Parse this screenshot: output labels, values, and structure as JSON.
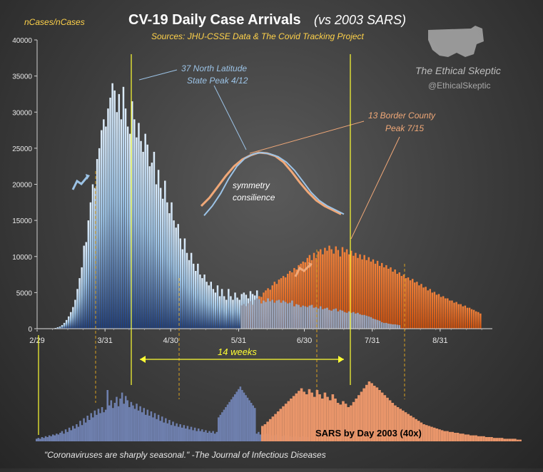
{
  "title_main": "CV-19  Daily Case Arrivals",
  "title_sub": "(vs 2003 SARS)",
  "sources": "Sources: JHU-CSSE Data & The Covid Tracking Project",
  "ylabel": "nCases/nCases",
  "brand": "The Ethical Skeptic",
  "handle": "@EthicalSkeptic",
  "annotation_north": [
    "37 North Latitude",
    "State Peak 4/12"
  ],
  "annotation_border": [
    "13 Border County",
    "Peak 7/15"
  ],
  "annotation_symmetry": [
    "symmetry",
    "consilience"
  ],
  "weeks_label": "14 weeks",
  "sars_label": "SARS by Day 2003 (40x)",
  "quote": "\"Coronaviruses are sharply seasonal.\"  -The Journal of Infectious Diseases",
  "colors": {
    "north": "#9cc3e6",
    "north_dark": "#1f3d78",
    "border": "#e2651a",
    "sars_blue": "#6e7fad",
    "sars_orange": "#e8956a",
    "yellow": "#ffff33",
    "title": "#ffffff",
    "sources": "#ffd24a"
  },
  "chart_data": {
    "type": "bar",
    "xlabel": "",
    "ylabel": "nCases/nCases",
    "ylim": [
      0,
      40000
    ],
    "yticks": [
      "0",
      "5000",
      "10000",
      "15000",
      "20000",
      "25000",
      "30000",
      "35000",
      "40000"
    ],
    "xticks": [
      "2/29",
      "3/31",
      "4/30",
      "5/31",
      "6/30",
      "7/31",
      "8/31"
    ],
    "x_start": "2/29",
    "series": [
      {
        "name": "37 North Latitude",
        "start": "3/1",
        "values": [
          0,
          0,
          0,
          0,
          0,
          0,
          0,
          100,
          200,
          300,
          500,
          800,
          1200,
          1700,
          2300,
          3000,
          4000,
          5500,
          7000,
          8500,
          11500,
          12000,
          15000,
          17500,
          20000,
          19500,
          23500,
          25000,
          27500,
          29000,
          28000,
          30500,
          32000,
          34000,
          33000,
          30000,
          32500,
          29000,
          33500,
          30500,
          28000,
          27000,
          31500,
          29000,
          26500,
          28500,
          26000,
          24500,
          27000,
          25500,
          22500,
          23000,
          24500,
          20000,
          22000,
          19500,
          18000,
          20500,
          17500,
          16000,
          17500,
          15000,
          14000,
          14500,
          12500,
          11000,
          12500,
          10500,
          9500,
          10500,
          9000,
          8000,
          9000,
          7500,
          7000,
          7500,
          6500,
          6000,
          6500,
          5500,
          5000,
          6000,
          4500,
          5500,
          4500,
          4000,
          5500,
          4500,
          4000,
          5000,
          4300,
          4000,
          4800,
          5000,
          4700,
          4200,
          5200,
          4800,
          4600,
          5300,
          4100,
          3500,
          3900,
          3700,
          4200,
          3800,
          4000,
          3600,
          3900,
          4000,
          3600,
          3900,
          3700,
          3500,
          3600,
          3900,
          3100,
          3400,
          3300,
          3000,
          3200,
          3100,
          3000,
          3200,
          3300,
          2900,
          3000,
          2800,
          3100,
          2700,
          2800,
          2900,
          2600,
          2500,
          2700,
          2800,
          2400,
          2600,
          2500,
          2300,
          2200,
          2400,
          2200,
          2300,
          2100,
          2200,
          2000,
          1900,
          1900,
          1800,
          1700,
          1600,
          1400,
          1300,
          1200,
          1100,
          900,
          800,
          800,
          700,
          650,
          600,
          600,
          550,
          500
        ]
      },
      {
        "name": "13 Border County",
        "start": "6/1",
        "values": [
          3200,
          3400,
          3100,
          3500,
          3800,
          3300,
          4000,
          4200,
          4500,
          4400,
          5000,
          5300,
          5600,
          5400,
          6000,
          6500,
          6200,
          6800,
          7000,
          7300,
          7100,
          7600,
          8000,
          7800,
          8400,
          8200,
          8800,
          9000,
          9300,
          9200,
          9800,
          10200,
          9500,
          10500,
          9800,
          10700,
          11000,
          10300,
          11200,
          10800,
          11500,
          11000,
          10400,
          11400,
          10900,
          10000,
          11300,
          10600,
          11000,
          10300,
          10800,
          10100,
          10500,
          9800,
          10300,
          9600,
          10200,
          9500,
          9900,
          9300,
          9600,
          9000,
          9400,
          8700,
          9100,
          8500,
          8800,
          8300,
          8500,
          7900,
          8200,
          7600,
          7800,
          7300,
          7500,
          7000,
          7100,
          6700,
          6900,
          6400,
          6500,
          6000,
          6200,
          5700,
          5800,
          5300,
          5500,
          5000,
          5100,
          4700,
          4800,
          4400,
          4500,
          4200,
          4200,
          3900,
          3900,
          3600,
          3700,
          3400,
          3400,
          3100,
          3200,
          2900,
          2900,
          2700,
          2600,
          2400,
          2300,
          2100
        ]
      }
    ],
    "inset_curves": {
      "xlim": [
        "5/31",
        "5/31"
      ],
      "north": [
        0.08,
        0.22,
        0.4,
        0.62,
        0.8,
        0.92,
        0.98,
        1.0,
        0.98,
        0.94,
        0.86,
        0.74,
        0.58,
        0.42,
        0.3,
        0.22,
        0.16,
        0.1
      ],
      "border": [
        0.22,
        0.34,
        0.5,
        0.66,
        0.8,
        0.9,
        0.96,
        1.0,
        0.99,
        0.95,
        0.86,
        0.72,
        0.56,
        0.42,
        0.3,
        0.22,
        0.16,
        0.1
      ]
    },
    "sars": {
      "name": "SARS by Day 2003 (40x)",
      "blue": [
        3,
        4,
        3,
        5,
        4,
        6,
        5,
        7,
        6,
        8,
        7,
        9,
        8,
        10,
        12,
        9,
        14,
        11,
        16,
        13,
        18,
        15,
        20,
        17,
        24,
        19,
        27,
        22,
        30,
        25,
        33,
        28,
        36,
        31,
        38,
        33,
        40,
        34,
        37,
        60,
        42,
        48,
        39,
        45,
        52,
        41,
        50,
        57,
        44,
        53,
        48,
        40,
        46,
        42,
        38,
        44,
        36,
        41,
        34,
        39,
        31,
        37,
        30,
        35,
        28,
        33,
        26,
        31,
        24,
        29,
        22,
        27,
        21,
        25,
        19,
        23,
        18,
        21,
        17,
        20,
        16,
        19,
        15,
        18,
        14,
        17,
        13,
        16,
        12,
        15,
        12,
        14,
        11,
        13,
        10,
        12,
        10,
        12,
        9,
        11,
        9,
        11,
        8,
        10,
        8,
        9,
        8,
        9,
        7,
        8,
        7,
        8,
        6,
        8,
        6,
        7,
        6,
        7,
        6,
        7,
        5,
        6,
        5,
        6,
        5,
        6,
        5,
        5,
        5,
        5
      ],
      "blue_peak2": [
        28,
        31,
        34,
        37,
        40,
        43,
        46,
        49,
        52,
        55,
        58,
        61,
        64,
        60,
        57,
        54,
        51,
        48,
        45,
        42,
        39
      ],
      "orange": [
        18,
        20,
        23,
        26,
        29,
        32,
        35,
        38,
        41,
        44,
        47,
        50,
        53,
        56,
        59,
        62,
        58,
        55,
        61,
        57,
        52,
        60,
        55,
        50,
        57,
        52,
        48,
        55,
        50,
        45,
        43,
        47,
        44,
        40,
        42,
        46,
        50,
        54,
        58,
        62,
        66,
        70,
        68,
        65,
        63,
        60,
        57,
        54,
        51,
        48,
        45,
        42,
        40,
        38,
        36,
        34,
        32,
        30,
        28,
        26,
        24,
        22,
        20,
        19,
        18,
        17,
        16,
        15,
        14,
        13,
        12,
        12,
        11,
        11,
        10,
        10,
        9,
        9,
        8,
        8,
        7,
        7,
        7,
        6,
        6,
        6,
        5,
        5,
        5,
        4,
        4,
        4,
        4,
        3,
        3,
        3,
        3,
        3,
        2,
        2
      ]
    }
  }
}
